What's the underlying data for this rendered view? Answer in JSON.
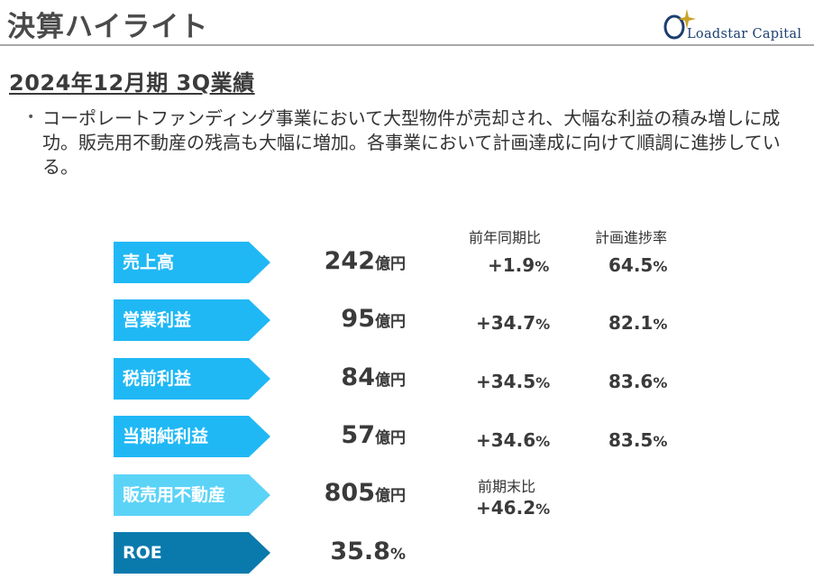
{
  "header": {
    "title": "決算ハイライト"
  },
  "logo": {
    "text": "Loadstar Capital"
  },
  "section": {
    "subtitle": "2024年12月期 3Q業績"
  },
  "bullet": {
    "text": "コーポレートファンディング事業において大型物件が売却され、大幅な利益の積み増しに成功。販売用不動産の残高も大幅に増加。各事業において計画達成に向けて順調に進捗している。"
  },
  "columns": {
    "yoy_header": "前年同期比",
    "progress_header": "計画進捗率",
    "prev_end_header": "前期末比"
  },
  "colors": {
    "bright": "#1fb8f5",
    "light": "#5bd3f7",
    "dark": "#0a7aad"
  },
  "metrics": [
    {
      "label": "売上高",
      "value": "242",
      "unit": "億円",
      "yoy": "+1.9",
      "yoy_unit": "%",
      "progress": "64.5",
      "progress_unit": "%"
    },
    {
      "label": "営業利益",
      "value": "95",
      "unit": "億円",
      "yoy": "+34.7",
      "yoy_unit": "%",
      "progress": "82.1",
      "progress_unit": "%"
    },
    {
      "label": "税前利益",
      "value": "84",
      "unit": "億円",
      "yoy": "+34.5",
      "yoy_unit": "%",
      "progress": "83.6",
      "progress_unit": "%"
    },
    {
      "label": "当期純利益",
      "value": "57",
      "unit": "億円",
      "yoy": "+34.6",
      "yoy_unit": "%",
      "progress": "83.5",
      "progress_unit": "%"
    },
    {
      "label": "販売用不動産",
      "value": "805",
      "unit": "億円",
      "change": "+46.2",
      "change_unit": "%"
    },
    {
      "label": "ROE",
      "value": "35.8",
      "unit": "%"
    }
  ]
}
